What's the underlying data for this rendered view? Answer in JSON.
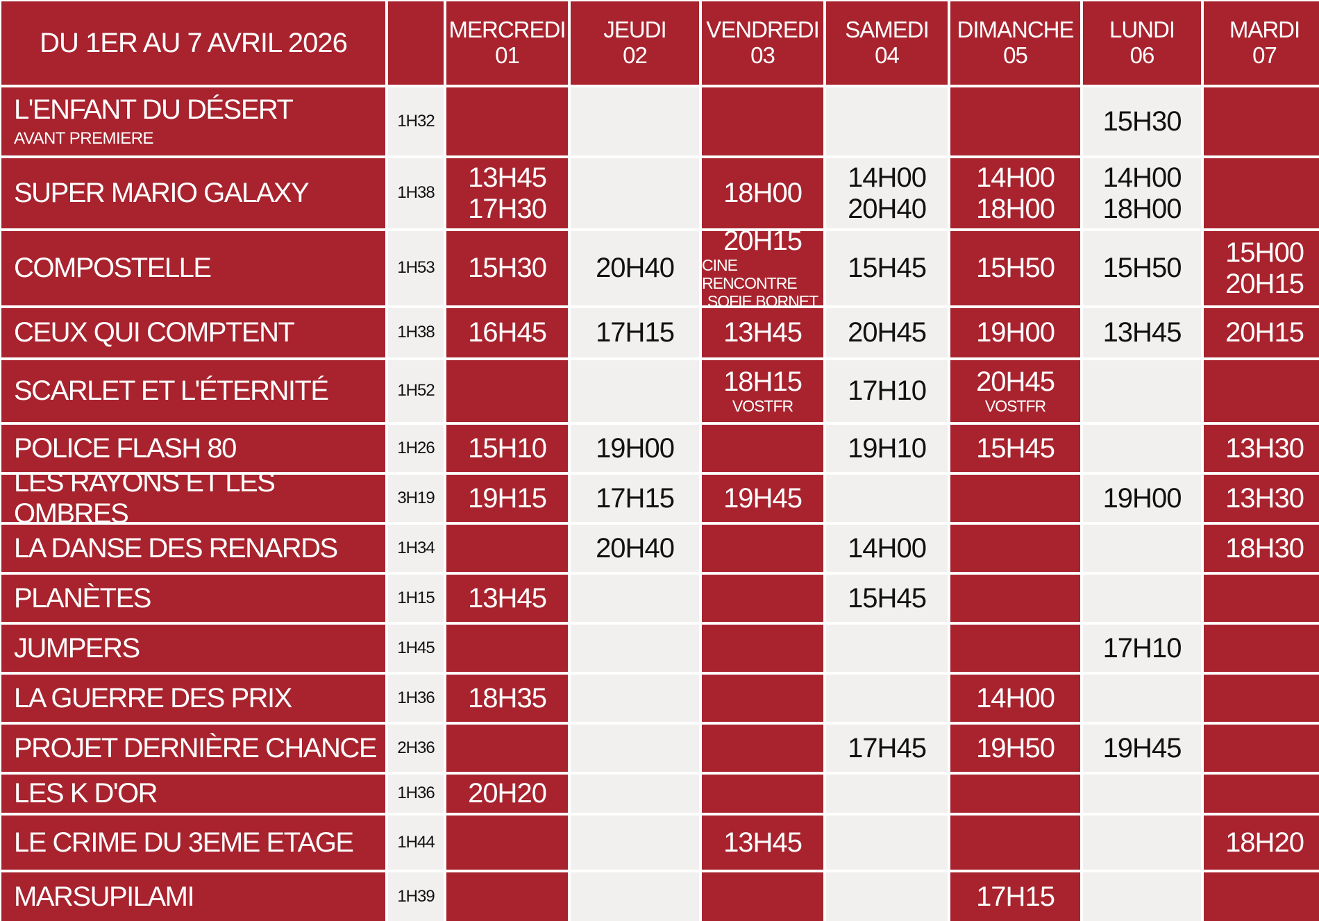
{
  "header": {
    "title": "DU 1ER AU 7 AVRIL 2026",
    "days": [
      {
        "name": "MERCREDI",
        "date": "01"
      },
      {
        "name": "JEUDI",
        "date": "02"
      },
      {
        "name": "VENDREDI",
        "date": "03"
      },
      {
        "name": "SAMEDI",
        "date": "04"
      },
      {
        "name": "DIMANCHE",
        "date": "05"
      },
      {
        "name": "LUNDI",
        "date": "06"
      },
      {
        "name": "MARDI",
        "date": "07"
      }
    ]
  },
  "rows": [
    {
      "title": "L'ENFANT DU DÉSERT",
      "subtitle": "AVANT PREMIERE",
      "duration": "1H32",
      "cells": [
        [],
        [],
        [],
        [],
        [],
        [
          "15H30"
        ],
        []
      ]
    },
    {
      "title": "SUPER MARIO GALAXY",
      "duration": "1H38",
      "cells": [
        [
          "13H45",
          "17H30"
        ],
        [],
        [
          "18H00"
        ],
        [
          "14H00",
          "20H40"
        ],
        [
          "14H00",
          "18H00"
        ],
        [
          "14H00",
          "18H00"
        ],
        []
      ]
    },
    {
      "title": "COMPOSTELLE",
      "duration": "1H53",
      "cells": [
        [
          "15H30"
        ],
        [
          "20H40"
        ],
        {
          "times": [
            "20H15"
          ],
          "note": [
            "CINE RENCONTRE",
            "SOFIE BORNET"
          ]
        },
        [
          "15H45"
        ],
        [
          "15H50"
        ],
        [
          "15H50"
        ],
        [
          "15H00",
          "20H15"
        ]
      ]
    },
    {
      "title": "CEUX QUI COMPTENT",
      "duration": "1H38",
      "cells": [
        [
          "16H45"
        ],
        [
          "17H15"
        ],
        [
          "13H45"
        ],
        [
          "20H45"
        ],
        [
          "19H00"
        ],
        [
          "13H45"
        ],
        [
          "20H15"
        ]
      ]
    },
    {
      "title": "SCARLET ET L'ÉTERNITÉ",
      "duration": "1H52",
      "cells": [
        [],
        [],
        {
          "times": [
            "18H15"
          ],
          "note": [
            "VOSTFR"
          ]
        },
        [
          "17H10"
        ],
        {
          "times": [
            "20H45"
          ],
          "note": [
            "VOSTFR"
          ]
        },
        [],
        []
      ]
    },
    {
      "title": "POLICE FLASH 80",
      "duration": "1H26",
      "cells": [
        [
          "15H10"
        ],
        [
          "19H00"
        ],
        [],
        [
          "19H10"
        ],
        [
          "15H45"
        ],
        [],
        [
          "13H30"
        ]
      ]
    },
    {
      "title": "LES RAYONS ET LES OMBRES",
      "duration": "3H19",
      "cells": [
        [
          "19H15"
        ],
        [
          "17H15"
        ],
        [
          "19H45"
        ],
        [],
        [],
        [
          "19H00"
        ],
        [
          "13H30"
        ]
      ]
    },
    {
      "title": "LA DANSE DES RENARDS",
      "duration": "1H34",
      "cells": [
        [],
        [
          "20H40"
        ],
        [],
        [
          "14H00"
        ],
        [],
        [],
        [
          "18H30"
        ]
      ]
    },
    {
      "title": "PLANÈTES",
      "duration": "1H15",
      "cells": [
        [
          "13H45"
        ],
        [],
        [],
        [
          "15H45"
        ],
        [],
        [],
        []
      ]
    },
    {
      "title": "JUMPERS",
      "duration": "1H45",
      "cells": [
        [],
        [],
        [],
        [],
        [],
        [
          "17H10"
        ],
        []
      ]
    },
    {
      "title": "LA GUERRE DES PRIX",
      "duration": "1H36",
      "cells": [
        [
          "18H35"
        ],
        [],
        [],
        [],
        [
          "14H00"
        ],
        [],
        []
      ]
    },
    {
      "title": "PROJET DERNIÈRE CHANCE",
      "duration": "2H36",
      "cells": [
        [],
        [],
        [],
        [
          "17H45"
        ],
        [
          "19H50"
        ],
        [
          "19H45"
        ],
        []
      ]
    },
    {
      "title": "LES K D'OR",
      "duration": "1H36",
      "cells": [
        [
          "20H20"
        ],
        [],
        [],
        [],
        [],
        [],
        []
      ]
    },
    {
      "title": "LE CRIME DU 3EME ETAGE",
      "duration": "1H44",
      "cells": [
        [],
        [],
        [
          "13H45"
        ],
        [],
        [],
        [],
        [
          "18H20"
        ]
      ]
    },
    {
      "title": "MARSUPILAMI",
      "duration": "1H39",
      "cells": [
        [],
        [],
        [],
        [],
        [
          "17H15"
        ],
        [],
        []
      ]
    }
  ]
}
